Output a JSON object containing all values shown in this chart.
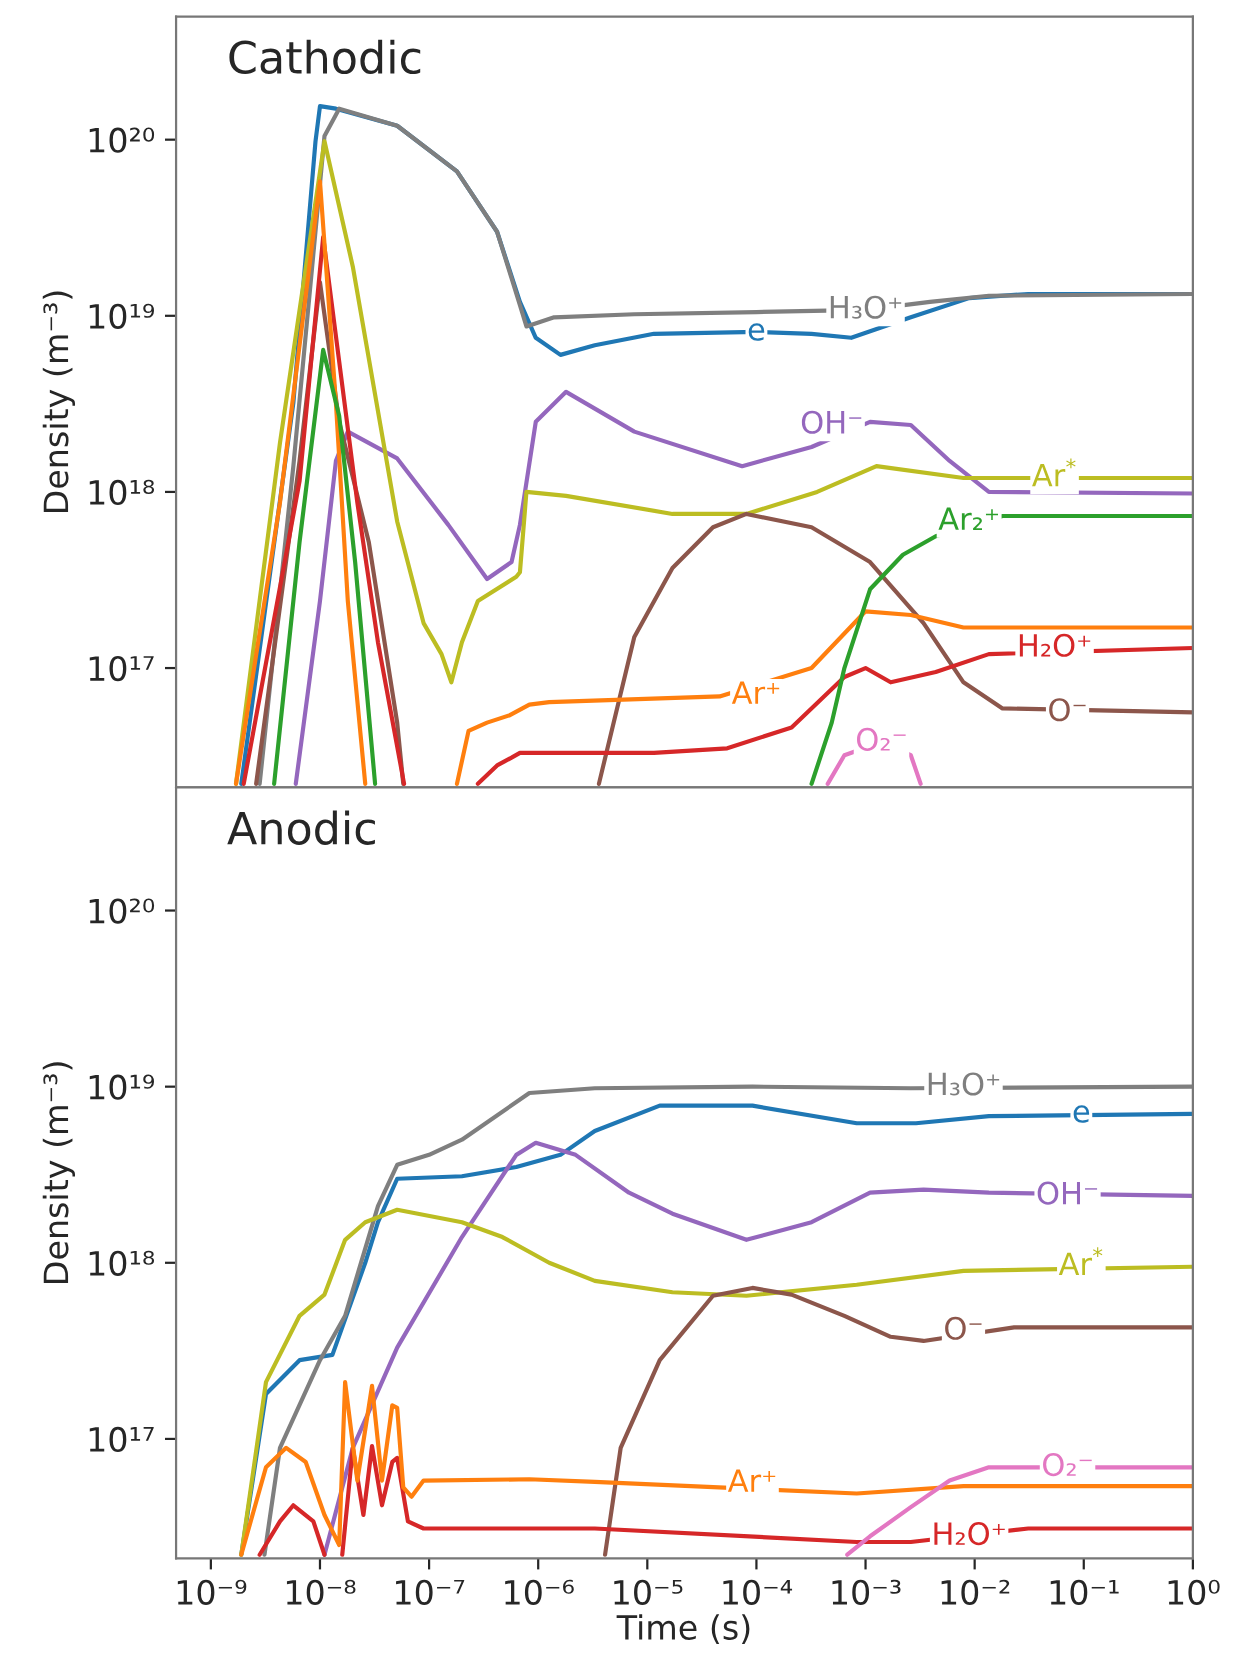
{
  "chart_data": [
    {
      "type": "line",
      "title": "Cathodic",
      "ylabel": "Density (m⁻³)",
      "log": "xy",
      "tick_labels": "y",
      "line_style": "solid",
      "xlim": [
        4.8e-10,
        1
      ],
      "ylim": [
        2.1e+16,
        5e+20
      ],
      "xticks": [
        {
          "value": 1e-09,
          "label": null
        },
        {
          "value": 1e-08,
          "label": null
        },
        {
          "value": 1e-07,
          "label": null
        },
        {
          "value": 1e-06,
          "label": null
        },
        {
          "value": 1e-05,
          "label": null
        },
        {
          "value": 0.0001,
          "label": null
        },
        {
          "value": 0.001,
          "label": null
        },
        {
          "value": 0.01,
          "label": null
        },
        {
          "value": 0.1,
          "label": null
        },
        {
          "value": 1,
          "label": null
        }
      ],
      "yticks": [
        {
          "value": 1e+17,
          "label": "10¹⁷"
        },
        {
          "value": 1e+18,
          "label": "10¹⁸"
        },
        {
          "value": 1e+19,
          "label": "10¹⁹"
        },
        {
          "value": 1e+20,
          "label": "10²⁰"
        }
      ],
      "series": [
        {
          "color": "#1f77b4",
          "x": [
            1.9e-09,
            5.7e-09,
            9.1e-09,
            1e-08,
            1.4e-08,
            5.1e-08,
            1.8e-07,
            4.2e-07,
            6.8e-07,
            9.5e-07,
            1.6e-06,
            3.3e-06,
            1.15e-05,
            0.0001,
            0.00032,
            0.00074,
            0.0026,
            0.0089,
            0.031,
            1
          ],
          "values": [
            2.2e+16,
            3.2e+18,
            9.8e+19,
            1.55e+20,
            1.5e+20,
            1.2e+20,
            6.6e+19,
            3e+19,
            1.2e+19,
            7.5e+18,
            6e+18,
            6.8e+18,
            7.9e+18,
            8.1e+18,
            7.9e+18,
            7.5e+18,
            9.8e+18,
            1.26e+19,
            1.33e+19,
            1.33e+19
          ]
        },
        {
          "color": "#7f7f7f",
          "x": [
            2.8e-09,
            5.7e-09,
            1.1e-08,
            1.5e-08,
            5.1e-08,
            1.8e-07,
            4.2e-07,
            6.8e-07,
            7.8e-07,
            1.4e-06,
            7.6e-06,
            0.0001,
            0.001,
            0.0039,
            0.0135,
            1
          ],
          "values": [
            2.2e+16,
            1.4e+18,
            1.05e+20,
            1.5e+20,
            1.2e+20,
            6.6e+19,
            3e+19,
            1.15e+19,
            8.7e+18,
            9.8e+18,
            1.02e+19,
            1.05e+19,
            1.08e+19,
            1.2e+19,
            1.3e+19,
            1.33e+19
          ]
        },
        {
          "color": "#9467bd",
          "x": [
            6e-09,
            1e-08,
            1.4e-08,
            1.8e-08,
            5.1e-08,
            1.5e-07,
            3.4e-07,
            5.7e-07,
            6.8e-07,
            9.5e-07,
            1.8e-06,
            7.6e-06,
            7.4e-05,
            0.00032,
            0.0011,
            0.0026,
            0.0059,
            0.0135,
            1
          ],
          "values": [
            2.2e+16,
            2.4e+17,
            1.5e+18,
            2.2e+18,
            1.55e+18,
            6.5e+17,
            3.2e+17,
            4e+17,
            6.5e+17,
            2.5e+18,
            3.7e+18,
            2.2e+18,
            1.4e+18,
            1.8e+18,
            2.5e+18,
            2.4e+18,
            1.5e+18,
            1e+18,
            9.8e+17
          ]
        },
        {
          "color": "#bcbd22",
          "x": [
            1.7e-09,
            4.3e-09,
            1.1e-08,
            2e-08,
            5.1e-08,
            8.9e-08,
            1.3e-07,
            1.6e-07,
            2e-07,
            2.8e-07,
            6.3e-07,
            6.8e-07,
            7.8e-07,
            1.8e-06,
            1.7e-05,
            8.1e-05,
            0.00036,
            0.00126,
            0.0079,
            1
          ],
          "values": [
            2.2e+16,
            1.9e+18,
            9.8e+19,
            1.9e+19,
            6.8e+17,
            1.8e+17,
            1.2e+17,
            8.3e+16,
            1.4e+17,
            2.4e+17,
            3.3e+17,
            3.5e+17,
            1e+18,
            9.5e+17,
            7.5e+17,
            7.5e+17,
            1e+18,
            1.4e+18,
            1.2e+18,
            1.2e+18
          ]
        },
        {
          "color": "#8c564b",
          "x": [
            2.6e-09,
            6.5e-09,
            1e-08,
            1.5e-08,
            2.8e-08,
            5.1e-08,
            5.8e-08,
            null,
            3.6e-06,
            7.6e-06,
            1.7e-05,
            4e-05,
            8.1e-05,
            0.00032,
            0.0011,
            0.0034,
            0.0079,
            0.018,
            1
          ],
          "values": [
            2.2e+16,
            1.5e+18,
            1.55e+19,
            2.5e+18,
            5.2e+17,
            4.9e+16,
            2.2e+16,
            null,
            2.2e+16,
            1.5e+17,
            3.7e+17,
            6.3e+17,
            7.5e+17,
            6.3e+17,
            4e+17,
            1.8e+17,
            8.3e+16,
            5.9e+16,
            5.6e+16
          ]
        },
        {
          "color": "#d62728",
          "x": [
            2e-09,
            6.5e-09,
            1.07e-08,
            1.5e-08,
            2.2e-08,
            3.4e-08,
            5.9e-08,
            null,
            2.8e-07,
            4.2e-07,
            5.7e-07,
            6.8e-07,
            9.5e-07,
            1.15e-05,
            5.4e-05,
            0.00021,
            0.00064,
            0.001,
            0.0017,
            0.0044,
            0.0135,
            1
          ],
          "values": [
            2.2e+16,
            1.15e+18,
            2.8e+19,
            5.5e+18,
            8.7e+17,
            1.4e+17,
            2.2e+16,
            null,
            2.2e+16,
            2.8e+16,
            3.1e+16,
            3.3e+16,
            3.3e+16,
            3.3e+16,
            3.5e+16,
            4.6e+16,
            8.9e+16,
            1e+17,
            8.3e+16,
            9.5e+16,
            1.2e+17,
            1.3e+17
          ]
        },
        {
          "color": "#ff7f0e",
          "x": [
            1.7e-09,
            4.3e-09,
            1e-08,
            1.4e-08,
            1.8e-08,
            2.6e-08,
            null,
            1.8e-07,
            2.3e-07,
            3.4e-07,
            5.5e-07,
            8.3e-07,
            1.26e-06,
            4.6e-05,
            0.00032,
            0.001,
            0.0026,
            0.0079,
            1
          ],
          "values": [
            2.2e+16,
            8.7e+17,
            5.8e+19,
            3.2e+18,
            2.4e+17,
            2.2e+16,
            null,
            2.2e+16,
            4.4e+16,
            4.9e+16,
            5.4e+16,
            6.2e+16,
            6.4e+16,
            6.9e+16,
            1e+17,
            2.1e+17,
            2e+17,
            1.7e+17,
            1.7e+17
          ]
        },
        {
          "color": "#2ca02c",
          "x": [
            3.8e-09,
            6.5e-09,
            1.07e-08,
            1.5e-08,
            2.1e-08,
            3.2e-08,
            null,
            0.00032,
            0.00049,
            0.00064,
            0.0011,
            0.0022,
            0.0044,
            0.018,
            1
          ],
          "values": [
            2.2e+16,
            5.2e+17,
            6.4e+18,
            2.7e+18,
            4e+17,
            2.2e+16,
            null,
            2.2e+16,
            4.9e+16,
            1e+17,
            2.8e+17,
            4.4e+17,
            5.6e+17,
            7.3e+17,
            7.3e+17
          ]
        },
        {
          "color": "#e377c2",
          "x": [
            0.00045,
            0.00064,
            0.0014,
            0.0026,
            0.0032
          ],
          "values": [
            2.2e+16,
            3.2e+16,
            3.8e+16,
            3.2e+16,
            2.2e+16
          ]
        }
      ],
      "annotations": [
        {
          "text": "e",
          "x": 0.0001,
          "y": 8.1e+18
        },
        {
          "text": "H₃O⁺",
          "x": 0.001,
          "y": 1.08e+19
        },
        {
          "text": "OH⁻",
          "x": 0.00049,
          "y": 2.4e+18
        },
        {
          "text": "Ar$^{*}$",
          "x": 0.054,
          "y": 1.2e+18
        },
        {
          "text": "O⁻",
          "x": 0.071,
          "y": 5.6e+16
        },
        {
          "text": "H₂O⁺",
          "x": 0.054,
          "y": 1.3e+17
        },
        {
          "text": "Ar⁺",
          "x": 0.0001,
          "y": 7e+16
        },
        {
          "text": "Ar₂⁺",
          "x": 0.0089,
          "y": 6.8e+17
        },
        {
          "text": "O₂⁻",
          "x": 0.0014,
          "y": 3.8e+16
        }
      ]
    },
    {
      "type": "line",
      "title": "Anodic",
      "xlabel": "Time (s)",
      "ylabel": "Density (m⁻³)",
      "log": "xy",
      "line_style": "solid",
      "xlim": [
        4.8e-10,
        1
      ],
      "ylim": [
        2.1e+16,
        5e+20
      ],
      "xticks": [
        {
          "value": 1e-09,
          "label": "10⁻⁹"
        },
        {
          "value": 1e-08,
          "label": "10⁻⁸"
        },
        {
          "value": 1e-07,
          "label": "10⁻⁷"
        },
        {
          "value": 1e-06,
          "label": "10⁻⁶"
        },
        {
          "value": 1e-05,
          "label": "10⁻⁵"
        },
        {
          "value": 0.0001,
          "label": "10⁻⁴"
        },
        {
          "value": 0.001,
          "label": "10⁻³"
        },
        {
          "value": 0.01,
          "label": "10⁻²"
        },
        {
          "value": 0.1,
          "label": "10⁻¹"
        },
        {
          "value": 1,
          "label": "10⁰"
        }
      ],
      "yticks": [
        {
          "value": 1e+17,
          "label": "10¹⁷"
        },
        {
          "value": 1e+18,
          "label": "10¹⁸"
        },
        {
          "value": 1e+19,
          "label": "10¹⁹"
        },
        {
          "value": 1e+20,
          "label": "10²⁰"
        }
      ],
      "series": [
        {
          "color": "#1f77b4",
          "x": [
            1.9e-09,
            3.2e-09,
            6.5e-09,
            1.3e-08,
            2.6e-08,
            3.4e-08,
            5.1e-08,
            2e-07,
            6.3e-07,
            1.6e-06,
            3.3e-06,
            1.3e-05,
            9.2e-05,
            0.00083,
            0.0029,
            0.0135,
            1
          ],
          "values": [
            2.2e+16,
            1.8e+17,
            2.8e+17,
            3e+17,
            1e+18,
            1.7e+18,
            3e+18,
            3.1e+18,
            3.5e+18,
            4.1e+18,
            5.6e+18,
            7.8e+18,
            7.8e+18,
            6.2e+18,
            6.2e+18,
            6.8e+18,
            7e+18
          ]
        },
        {
          "color": "#7f7f7f",
          "x": [
            3.1e-09,
            4.3e-09,
            1e-08,
            1.7e-08,
            3.4e-08,
            5.1e-08,
            1e-07,
            2e-07,
            8.3e-07,
            3.3e-06,
            9.2e-05,
            0.0026,
            1
          ],
          "values": [
            2.2e+16,
            8.9e+16,
            2.8e+17,
            5e+17,
            2.1e+18,
            3.6e+18,
            4.1e+18,
            5e+18,
            9.2e+18,
            9.8e+18,
            1e+19,
            9.8e+18,
            1e+19
          ]
        },
        {
          "color": "#9467bd",
          "x": [
            1.1e-08,
            2e-08,
            5.1e-08,
            2e-07,
            6.3e-07,
            9.5e-07,
            2.2e-06,
            6.8e-06,
            1.7e-05,
            8.1e-05,
            0.00032,
            0.0011,
            0.0034,
            0.0135,
            1
          ],
          "values": [
            2.2e+16,
            8.9e+16,
            3.3e+17,
            1.4e+18,
            4.1e+18,
            4.8e+18,
            4.1e+18,
            2.5e+18,
            1.9e+18,
            1.35e+18,
            1.7e+18,
            2.5e+18,
            2.6e+18,
            2.5e+18,
            2.4e+18
          ]
        },
        {
          "color": "#bcbd22",
          "x": [
            1.9e-09,
            3.2e-09,
            6.5e-09,
            1.1e-08,
            1.7e-08,
            2.6e-08,
            5.1e-08,
            2e-07,
            4.7e-07,
            1.26e-06,
            3.3e-06,
            1.7e-05,
            8.1e-05,
            0.00083,
            0.0079,
            1
          ],
          "values": [
            2.2e+16,
            2.1e+17,
            5e+17,
            6.6e+17,
            1.35e+18,
            1.7e+18,
            2e+18,
            1.7e+18,
            1.4e+18,
            1e+18,
            7.9e+17,
            6.8e+17,
            6.5e+17,
            7.5e+17,
            9e+17,
            9.5e+17
          ]
        },
        {
          "color": "#8c564b",
          "x": [
            4.1e-06,
            5.7e-06,
            1.3e-05,
            4e-05,
            9.2e-05,
            0.00021,
            0.00064,
            0.0017,
            0.0034,
            0.023,
            1
          ],
          "values": [
            2.2e+16,
            8.9e+16,
            2.8e+17,
            6.5e+17,
            7.2e+17,
            6.6e+17,
            5e+17,
            3.8e+17,
            3.6e+17,
            4.3e+17,
            4.3e+17
          ]
        },
        {
          "color": "#d62728",
          "x": [
            2.8e-09,
            4.3e-09,
            5.7e-09,
            8.7e-09,
            1.1e-08,
            null,
            1.6e-08,
            2e-08,
            2.5e-08,
            3e-08,
            3.7e-08,
            4.6e-08,
            5.1e-08,
            6.4e-08,
            8.9e-08,
            3.3e-06,
            0.00083,
            0.0026,
            0.031,
            1
          ],
          "values": [
            2.2e+16,
            3.4e+16,
            4.2e+16,
            3.4e+16,
            2.2e+16,
            null,
            2.2e+16,
            8.9e+16,
            3.7e+16,
            9.1e+16,
            4.2e+16,
            7.4e+16,
            7.8e+16,
            3.4e+16,
            3.1e+16,
            3.1e+16,
            2.6e+16,
            2.6e+16,
            3.1e+16,
            3.1e+16
          ]
        },
        {
          "color": "#ff7f0e",
          "x": [
            1.9e-09,
            3.2e-09,
            4.9e-09,
            7.4e-09,
            1.1e-08,
            1.5e-08,
            1.7e-08,
            2.2e-08,
            3e-08,
            3.7e-08,
            4.6e-08,
            5.1e-08,
            5.8e-08,
            6.9e-08,
            8.9e-08,
            8.3e-07,
            3.3e-06,
            0.00083,
            0.0079,
            1
          ],
          "values": [
            2.2e+16,
            6.9e+16,
            8.9e+16,
            7.4e+16,
            3.7e+16,
            2.5e+16,
            2.1e+17,
            5.8e+16,
            2e+17,
            5.8e+16,
            1.55e+17,
            1.5e+17,
            5.3e+16,
            4.7e+16,
            5.8e+16,
            5.9e+16,
            5.7e+16,
            4.9e+16,
            5.4e+16,
            5.4e+16
          ]
        },
        {
          "color": "#e377c2",
          "x": [
            0.00068,
            0.0011,
            0.0026,
            0.0059,
            0.0135,
            1
          ],
          "values": [
            2.2e+16,
            2.8e+16,
            4.1e+16,
            5.8e+16,
            6.9e+16,
            6.9e+16
          ]
        }
      ],
      "annotations": [
        {
          "text": "e",
          "x": 0.095,
          "y": 7e+18
        },
        {
          "text": "H₃O⁺",
          "x": 0.0079,
          "y": 1e+19
        },
        {
          "text": "OH⁻",
          "x": 0.071,
          "y": 2.4e+18
        },
        {
          "text": "Ar$^{*}$",
          "x": 0.095,
          "y": 9.5e+17
        },
        {
          "text": "O⁻",
          "x": 0.0079,
          "y": 4.1e+17
        },
        {
          "text": "H₂O⁺",
          "x": 0.0089,
          "y": 2.8e+16
        },
        {
          "text": "Ar⁺",
          "x": 9.2e-05,
          "y": 5.6e+16
        },
        {
          "text": "O₂⁻",
          "x": 0.071,
          "y": 6.9e+16
        }
      ]
    }
  ]
}
